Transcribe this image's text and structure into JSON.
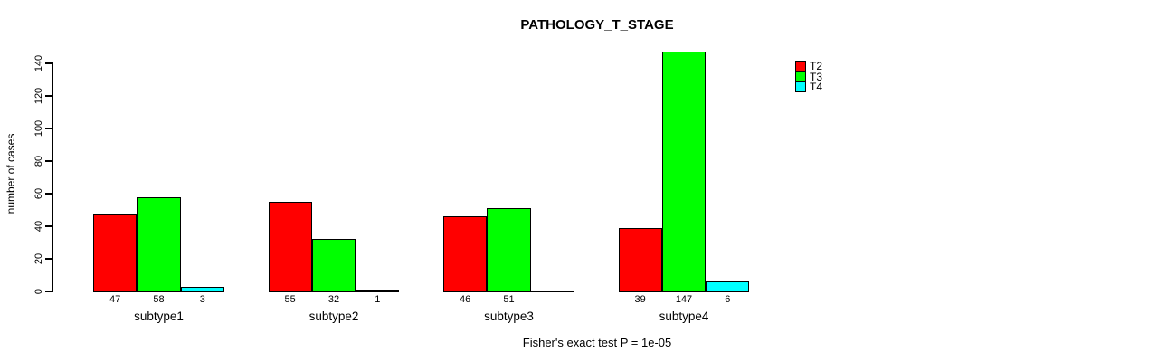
{
  "chart_data": {
    "type": "bar",
    "title": "PATHOLOGY_T_STAGE",
    "ylabel": "number of cases",
    "xlabel": "",
    "annotation": "Fisher's exact test P = 1e-05",
    "categories": [
      "subtype1",
      "subtype2",
      "subtype3",
      "subtype4"
    ],
    "series": [
      {
        "name": "T2",
        "color": "#ff0000",
        "values": [
          47,
          55,
          46,
          39
        ]
      },
      {
        "name": "T3",
        "color": "#00ff00",
        "values": [
          58,
          32,
          51,
          147
        ]
      },
      {
        "name": "T4",
        "color": "#00ffff",
        "values": [
          3,
          1,
          0,
          6
        ]
      }
    ],
    "bar_labels": [
      [
        "47",
        "58",
        "3"
      ],
      [
        "55",
        "32",
        "1"
      ],
      [
        "46",
        "51",
        ""
      ],
      [
        "39",
        "147",
        "6"
      ]
    ],
    "y_ticks": [
      0,
      20,
      40,
      60,
      80,
      100,
      120,
      140
    ],
    "ylim": [
      0,
      147
    ],
    "grid": false,
    "legend_position": "top-right",
    "colors": {
      "background": "#ffffff",
      "axis": "#000000",
      "text": "#000000"
    }
  }
}
